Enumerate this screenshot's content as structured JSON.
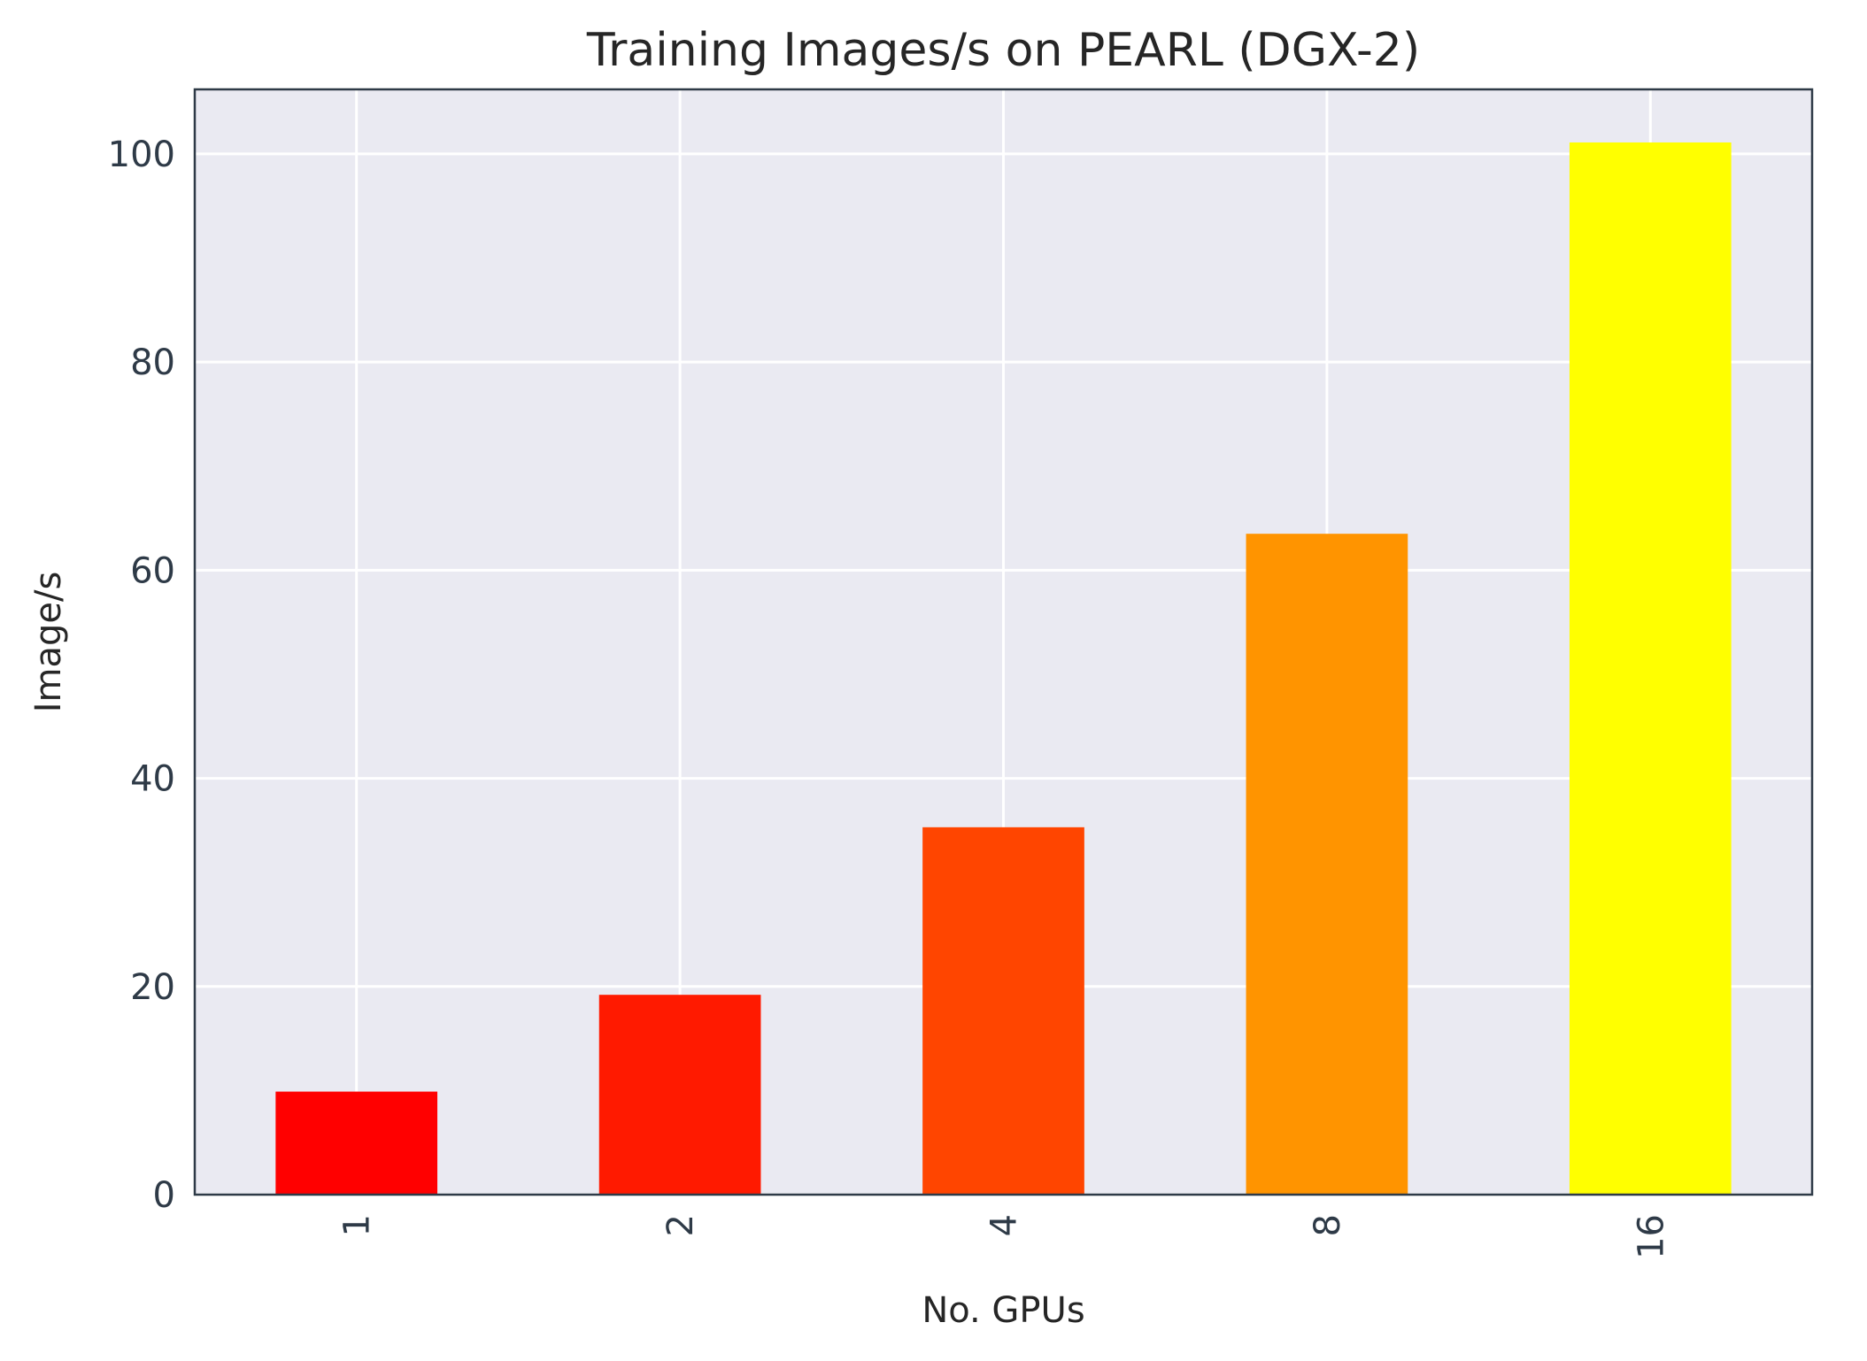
{
  "chart_data": {
    "type": "bar",
    "title": "Training Images/s on PEARL (DGX-2)",
    "xlabel": "No. GPUs",
    "ylabel": "Image/s",
    "categories": [
      "1",
      "2",
      "4",
      "8",
      "16"
    ],
    "values": [
      9.9,
      19.2,
      35.3,
      63.5,
      101.1
    ],
    "bar_colors": [
      "#ff0000",
      "#ff1a00",
      "#ff4500",
      "#ff9400",
      "#ffff00"
    ],
    "ylim": [
      0,
      106.2
    ],
    "yticks": [
      0,
      20,
      40,
      60,
      80,
      100
    ],
    "xtick_rotation": "vertical",
    "grid": true,
    "legend": "none",
    "background_color": "#eaeaf2",
    "grid_color": "#ffffff",
    "spine_color": "#2e3a47"
  }
}
